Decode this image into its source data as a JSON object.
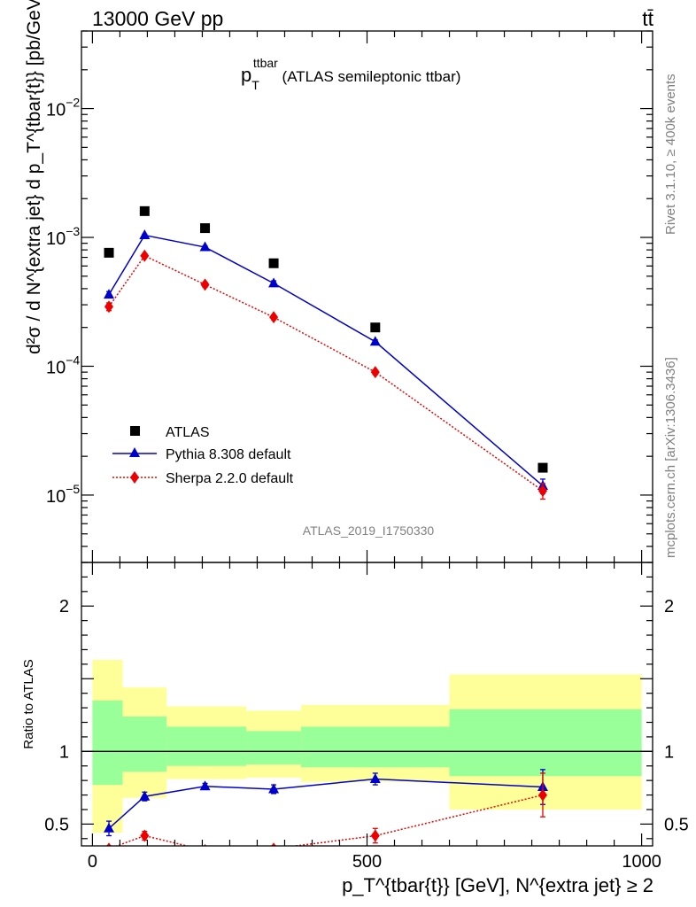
{
  "header": {
    "left": "13000 GeV pp",
    "right": "tt̄"
  },
  "side_labels": {
    "rivet": "Rivet 3.1.10, ≥ 400k events",
    "mcplots": "mcplots.cern.ch [arXiv:1306.3436]"
  },
  "chart_data": [
    {
      "type": "line",
      "title_main": "p",
      "title_sub": "T",
      "title_sup": "ttbar",
      "title_rest": " (ATLAS semileptonic ttbar)",
      "ylabel": "d²σ / d N^{extra jet} d p_T^{tbar{t}} [pb/GeV]",
      "yscale": "log",
      "ylim": [
        3e-06,
        0.04
      ],
      "xlim": [
        -20,
        1020
      ],
      "y_tick_labels": [
        "10^-5",
        "10^-4",
        "10^-3",
        "10^-2"
      ],
      "watermark": "ATLAS_2019_I1750330",
      "legend": [
        "ATLAS",
        "Pythia 8.308 default",
        "Sherpa 2.2.0 default"
      ],
      "x": [
        30,
        95,
        205,
        330,
        515,
        820
      ],
      "series": [
        {
          "name": "ATLAS",
          "color": "#000000",
          "marker": "square",
          "values": [
            0.00076,
            0.0016,
            0.00118,
            0.00063,
            0.0002,
            1.63e-05
          ]
        },
        {
          "name": "Pythia 8.308 default",
          "color": "#0000cc",
          "marker": "triangle",
          "values": [
            0.00036,
            0.00104,
            0.00084,
            0.00044,
            0.000155,
            1.18e-05
          ],
          "errors": [
            2e-05,
            2e-05,
            2e-05,
            2e-05,
            5e-06,
            1.5e-06
          ]
        },
        {
          "name": "Sherpa 2.2.0 default",
          "color": "#ee0000",
          "marker": "diamond",
          "values": [
            0.00029,
            0.00072,
            0.00043,
            0.00024,
            9e-05,
            1.08e-05
          ],
          "errors": [
            2e-05,
            2e-05,
            2e-05,
            1e-05,
            4e-06,
            1.5e-06
          ]
        }
      ]
    },
    {
      "type": "line",
      "ylabel": "Ratio to ATLAS",
      "xlabel": "p_T^{tbar{t}} [GeV], N^{extra jet} ≥ 2",
      "xlim": [
        -20,
        1020
      ],
      "ylim": [
        0.35,
        2.3
      ],
      "x_ticks": [
        0,
        500,
        1000
      ],
      "y_ticks": [
        0.5,
        1,
        2
      ],
      "bands": [
        {
          "x0": 0,
          "x1": 55,
          "yellow": [
            0.44,
            1.63
          ],
          "green": [
            0.77,
            1.35
          ]
        },
        {
          "x0": 55,
          "x1": 135,
          "yellow": [
            0.68,
            1.44
          ],
          "green": [
            0.86,
            1.24
          ]
        },
        {
          "x0": 135,
          "x1": 280,
          "yellow": [
            0.81,
            1.31
          ],
          "green": [
            0.9,
            1.17
          ]
        },
        {
          "x0": 280,
          "x1": 380,
          "yellow": [
            0.82,
            1.28
          ],
          "green": [
            0.91,
            1.14
          ]
        },
        {
          "x0": 380,
          "x1": 650,
          "yellow": [
            0.79,
            1.32
          ],
          "green": [
            0.89,
            1.17
          ]
        },
        {
          "x0": 650,
          "x1": 1000,
          "yellow": [
            0.6,
            1.53
          ],
          "green": [
            0.83,
            1.29
          ]
        }
      ],
      "x": [
        30,
        95,
        205,
        330,
        515,
        820
      ],
      "series": [
        {
          "name": "Pythia 8.308 default",
          "color": "#0000cc",
          "values": [
            0.47,
            0.69,
            0.76,
            0.74,
            0.81,
            0.755
          ],
          "errors": [
            0.05,
            0.03,
            0.02,
            0.03,
            0.04,
            0.12
          ]
        },
        {
          "name": "Sherpa 2.2.0 default",
          "color": "#ee0000",
          "values": [
            0.33,
            0.42,
            0.32,
            0.33,
            0.42,
            0.7
          ],
          "errors": [
            0.02,
            0.03,
            0.02,
            0.02,
            0.05,
            0.15
          ]
        }
      ]
    }
  ]
}
